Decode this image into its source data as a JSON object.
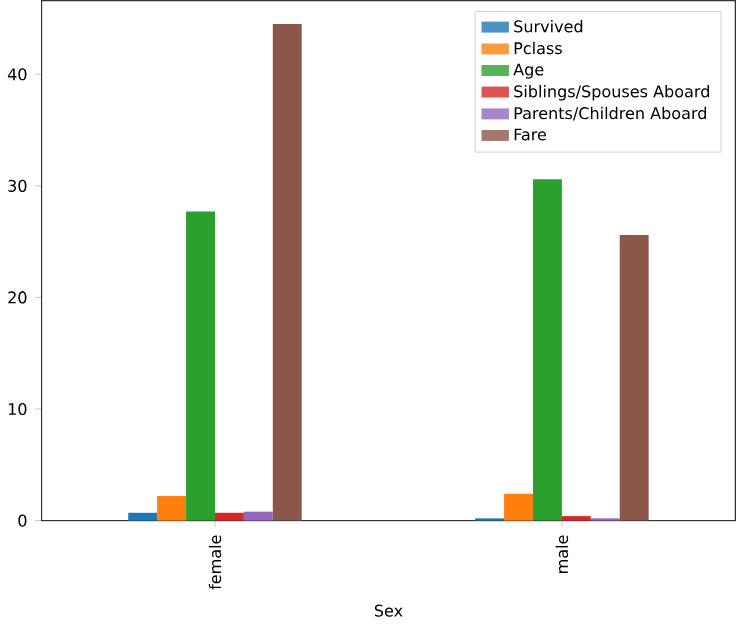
{
  "chart_data": {
    "type": "bar",
    "xlabel": "Sex",
    "categories": [
      "female",
      "male"
    ],
    "series": [
      {
        "name": "Survived",
        "color": "#1f77b4",
        "values": [
          0.7,
          0.2
        ]
      },
      {
        "name": "Pclass",
        "color": "#ff7f0e",
        "values": [
          2.2,
          2.4
        ]
      },
      {
        "name": "Age",
        "color": "#2ca02c",
        "values": [
          27.7,
          30.6
        ]
      },
      {
        "name": "Siblings/Spouses Aboard",
        "color": "#d62728",
        "values": [
          0.7,
          0.4
        ]
      },
      {
        "name": "Parents/Children Aboard",
        "color": "#9467bd",
        "values": [
          0.8,
          0.2
        ]
      },
      {
        "name": "Fare",
        "color": "#8c564b",
        "values": [
          44.5,
          25.6
        ]
      }
    ],
    "ylim": [
      0,
      46.6
    ],
    "yticks": [
      0,
      10,
      20,
      30,
      40
    ],
    "legend": "top right"
  }
}
